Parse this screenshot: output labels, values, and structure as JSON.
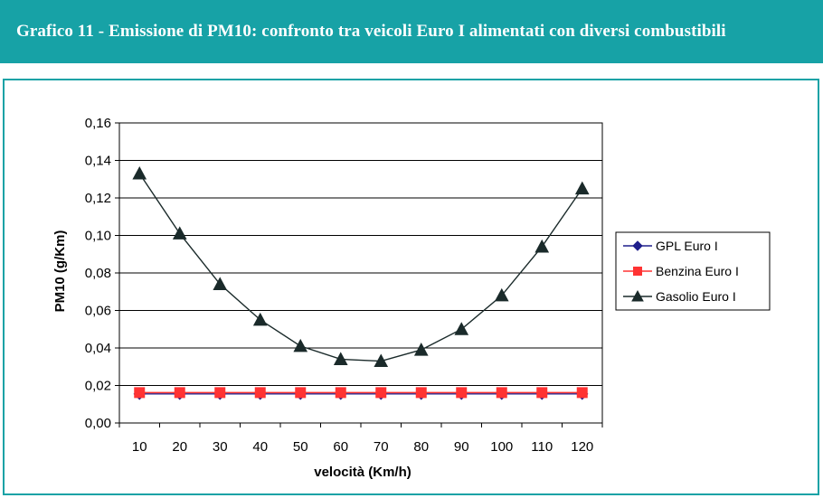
{
  "header": {
    "title": "Grafico 11 - Emissione di PM10: confronto tra veicoli Euro I alimentati con diversi combustibili"
  },
  "colors": {
    "header_bg": "#17a2a6",
    "frame_border": "#17a2a6"
  },
  "chart_data": {
    "type": "line",
    "title": "",
    "xlabel": "velocità (Km/h)",
    "ylabel": "PM10 (g/Km)",
    "x": [
      10,
      20,
      30,
      40,
      50,
      60,
      70,
      80,
      90,
      100,
      110,
      120
    ],
    "x_tick_labels": [
      "10",
      "20",
      "30",
      "40",
      "50",
      "60",
      "70",
      "80",
      "90",
      "100",
      "110",
      "120"
    ],
    "ylim": [
      0,
      0.16
    ],
    "y_ticks": [
      0,
      0.02,
      0.04,
      0.06,
      0.08,
      0.1,
      0.12,
      0.14,
      0.16
    ],
    "y_tick_labels": [
      "0,00",
      "0,02",
      "0,04",
      "0,06",
      "0,08",
      "0,10",
      "0,12",
      "0,14",
      "0,16"
    ],
    "grid": "horizontal",
    "legend_position": "right",
    "series": [
      {
        "name": "GPL Euro I",
        "color": "#1f1f8c",
        "marker": "diamond",
        "values": [
          0.0155,
          0.0155,
          0.0155,
          0.0155,
          0.0155,
          0.0155,
          0.0155,
          0.0155,
          0.0155,
          0.0155,
          0.0155,
          0.0155
        ]
      },
      {
        "name": "Benzina Euro I",
        "color": "#ff3333",
        "marker": "square",
        "values": [
          0.0162,
          0.0162,
          0.0162,
          0.0162,
          0.0162,
          0.0162,
          0.0162,
          0.0162,
          0.0162,
          0.0162,
          0.0162,
          0.0162
        ]
      },
      {
        "name": "Gasolio Euro I",
        "color": "#1a2a2a",
        "marker": "triangle",
        "values": [
          0.133,
          0.101,
          0.074,
          0.055,
          0.041,
          0.034,
          0.033,
          0.039,
          0.05,
          0.068,
          0.094,
          0.125
        ]
      }
    ]
  }
}
